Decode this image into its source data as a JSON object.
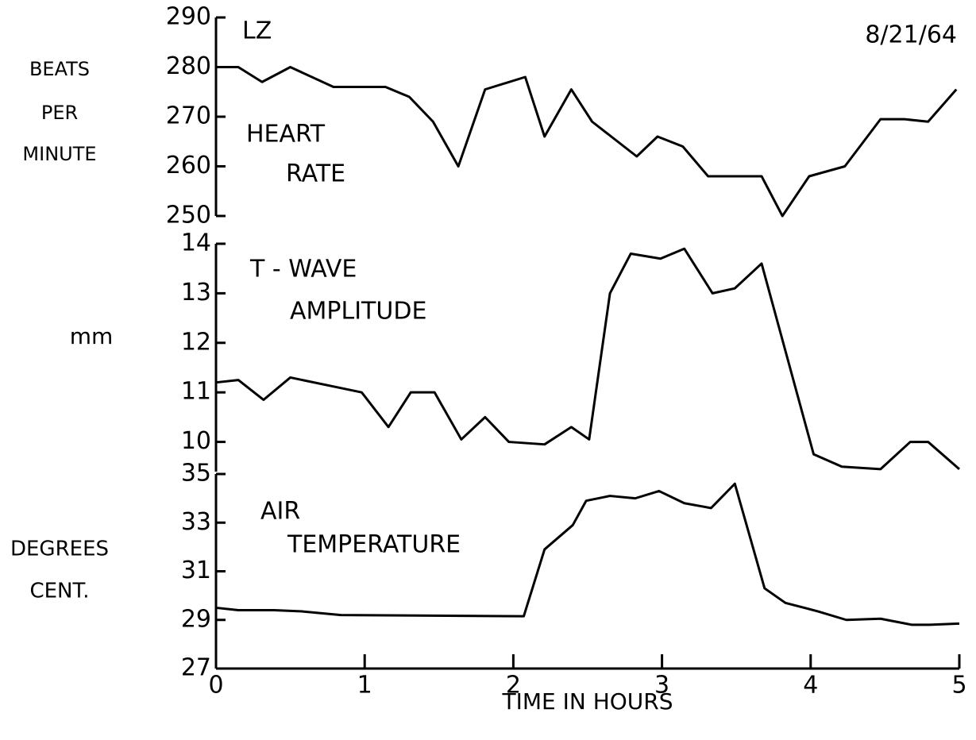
{
  "chart_data": [
    {
      "type": "line",
      "title": [
        "HEART",
        "RATE"
      ],
      "ylabel": [
        "BEATS",
        "PER",
        "MINUTE"
      ],
      "annotations": [
        "LZ",
        "8/21/64"
      ],
      "xlim": [
        0,
        5
      ],
      "ylim": [
        250,
        290
      ],
      "yticks": [
        250,
        260,
        270,
        280,
        290
      ],
      "series": [
        {
          "name": "HEART RATE",
          "color": "#000000",
          "x": [
            0,
            0.15,
            0.31,
            0.5,
            0.79,
            1.0,
            1.14,
            1.3,
            1.46,
            1.63,
            1.81,
            2.08,
            2.21,
            2.39,
            2.53,
            2.83,
            2.97,
            3.14,
            3.31,
            3.67,
            3.81,
            3.99,
            4.23,
            4.47,
            4.63,
            4.79,
            4.98
          ],
          "values": [
            280,
            280,
            277,
            280,
            276,
            276,
            276,
            274,
            269,
            260,
            275.5,
            278,
            266,
            275.5,
            269,
            262,
            266,
            264,
            258,
            258,
            250,
            258,
            260,
            269.5,
            269.5,
            269,
            275.5
          ]
        }
      ]
    },
    {
      "type": "line",
      "title": [
        "T - WAVE",
        "AMPLITUDE"
      ],
      "ylabel": [
        "mm"
      ],
      "xlim": [
        0,
        5
      ],
      "ylim": [
        9.4,
        14
      ],
      "yticks": [
        10,
        11,
        12,
        13,
        14
      ],
      "series": [
        {
          "name": "T-WAVE AMPLITUDE",
          "color": "#000000",
          "x": [
            0,
            0.15,
            0.32,
            0.5,
            0.82,
            0.98,
            1.16,
            1.31,
            1.47,
            1.65,
            1.81,
            1.97,
            2.21,
            2.39,
            2.51,
            2.65,
            2.79,
            2.99,
            3.15,
            3.34,
            3.49,
            3.67,
            4.02,
            4.21,
            4.47,
            4.67,
            4.79,
            5.0
          ],
          "values": [
            11.2,
            11.25,
            10.85,
            11.3,
            11.1,
            11.0,
            10.3,
            11.0,
            11.0,
            10.05,
            10.5,
            10.0,
            9.95,
            10.3,
            10.05,
            13.0,
            13.8,
            13.7,
            13.9,
            13.0,
            13.1,
            13.6,
            9.75,
            9.5,
            9.45,
            10.0,
            10.0,
            9.45
          ]
        }
      ]
    },
    {
      "type": "line",
      "title": [
        "AIR",
        "TEMPERATURE"
      ],
      "ylabel": [
        "DEGREES",
        "CENT."
      ],
      "xlabel": "TIME IN HOURS",
      "xlim": [
        0,
        5
      ],
      "xticks": [
        0,
        1,
        2,
        3,
        4,
        5
      ],
      "ylim": [
        27,
        35
      ],
      "yticks": [
        27,
        29,
        31,
        33,
        35
      ],
      "series": [
        {
          "name": "AIR TEMPERATURE",
          "color": "#000000",
          "x": [
            0,
            0.15,
            0.39,
            0.58,
            0.84,
            2.07,
            2.21,
            2.4,
            2.49,
            2.65,
            2.82,
            2.98,
            3.15,
            3.33,
            3.49,
            3.69,
            3.83,
            4.05,
            4.24,
            4.47,
            4.68,
            4.8,
            5.0
          ],
          "values": [
            29.5,
            29.4,
            29.4,
            29.35,
            29.2,
            29.15,
            31.9,
            32.9,
            33.9,
            34.1,
            34.0,
            34.3,
            33.8,
            33.6,
            34.6,
            30.3,
            29.7,
            29.35,
            29.0,
            29.05,
            28.8,
            28.8,
            28.85
          ]
        }
      ]
    }
  ]
}
